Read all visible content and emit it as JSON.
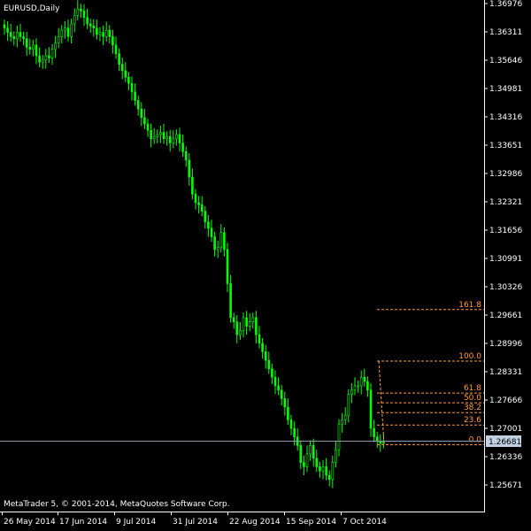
{
  "window": {
    "title": "EURUSD,Daily"
  },
  "copyright": "MetaTrader 5, © 2001-2014, MetaQuotes Software Corp.",
  "colors": {
    "background": "#000000",
    "candle": "#00ff00",
    "axis": "#ffffff",
    "fibonacci": "#ff9a40",
    "bid_line": "#8c9aa8",
    "price_label_bg": "#c0d0e0"
  },
  "current_price": "1.26681",
  "chart_data": {
    "type": "candlestick",
    "symbol": "EURUSD",
    "timeframe": "Daily",
    "price_ticks": [
      "1.36976",
      "1.36311",
      "1.35646",
      "1.34981",
      "1.34316",
      "1.33651",
      "1.32986",
      "1.32321",
      "1.31656",
      "1.30991",
      "1.30326",
      "1.29661",
      "1.28996",
      "1.28331",
      "1.27666",
      "1.27001",
      "1.26336",
      "1.25671"
    ],
    "date_ticks": [
      "26 May 2014",
      "17 Jun 2014",
      "9 Jul 2014",
      "31 Jul 2014",
      "22 Aug 2014",
      "15 Sep 2014",
      "7 Oct 2014"
    ],
    "ylim": [
      1.254,
      1.3705
    ],
    "fibonacci": {
      "levels": [
        {
          "label": "161.8",
          "price": 1.2979
        },
        {
          "label": "100.0",
          "price": 1.2858
        },
        {
          "label": "61.8",
          "price": 1.2783
        },
        {
          "label": "50.0",
          "price": 1.276
        },
        {
          "label": "38.2",
          "price": 1.2737
        },
        {
          "label": "23.6",
          "price": 1.2708
        },
        {
          "label": "0.0",
          "price": 1.2662
        }
      ]
    },
    "closes": [
      1.364,
      1.363,
      1.362,
      1.3615,
      1.363,
      1.362,
      1.3615,
      1.3595,
      1.359,
      1.36,
      1.3575,
      1.356,
      1.3565,
      1.3575,
      1.357,
      1.359,
      1.3605,
      1.362,
      1.3635,
      1.364,
      1.362,
      1.365,
      1.367,
      1.3685,
      1.368,
      1.3665,
      1.365,
      1.3645,
      1.364,
      1.3625,
      1.363,
      1.362,
      1.3635,
      1.362,
      1.36,
      1.358,
      1.3555,
      1.354,
      1.3525,
      1.351,
      1.349,
      1.347,
      1.345,
      1.343,
      1.3415,
      1.34,
      1.338,
      1.3385,
      1.339,
      1.3395,
      1.338,
      1.3385,
      1.337,
      1.338,
      1.339,
      1.337,
      1.335,
      1.333,
      1.329,
      1.325,
      1.323,
      1.3225,
      1.321,
      1.3185,
      1.317,
      1.315,
      1.312,
      1.3125,
      1.316,
      1.312,
      1.304,
      1.296,
      1.295,
      1.292,
      1.293,
      1.296,
      1.294,
      1.295,
      1.296,
      1.292,
      1.29,
      1.288,
      1.286,
      1.284,
      1.282,
      1.28,
      1.279,
      1.277,
      1.275,
      1.272,
      1.27,
      1.268,
      1.266,
      1.262,
      1.261,
      1.264,
      1.266,
      1.263,
      1.261,
      1.26,
      1.261,
      1.259,
      1.258,
      1.262,
      1.265,
      1.271,
      1.272,
      1.273,
      1.278,
      1.279,
      1.28,
      1.28,
      1.282,
      1.281,
      1.279,
      1.27,
      1.268,
      1.267,
      1.2665,
      1.2668
    ]
  }
}
